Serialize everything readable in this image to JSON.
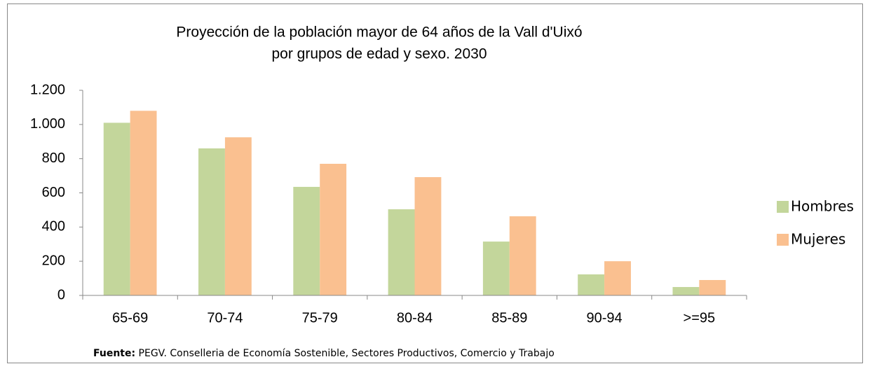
{
  "chart_data": {
    "type": "bar",
    "title": [
      "Proyección de la población mayor de 64 años de la Vall d'Uixó",
      "por grupos de edad y sexo. 2030"
    ],
    "categories": [
      "65-69",
      "70-74",
      "75-79",
      "80-84",
      "85-89",
      "90-94",
      ">=95"
    ],
    "series": [
      {
        "name": "Hombres",
        "color": "#c3d69b",
        "values": [
          1010,
          860,
          635,
          504,
          315,
          123,
          49
        ]
      },
      {
        "name": "Mujeres",
        "color": "#fac090",
        "values": [
          1080,
          925,
          770,
          692,
          463,
          200,
          90
        ]
      }
    ],
    "ylim": [
      0,
      1200
    ],
    "yticks": [
      0,
      200,
      400,
      600,
      800,
      {
        "value": 1000,
        "label": "1.000"
      },
      {
        "value": 1200,
        "label": "1.200"
      }
    ],
    "grid": false,
    "legend": "right",
    "source_label": "Fuente:",
    "source": "PEGV. Conselleria de Economía Sostenible, Sectores Productivos, Comercio y Trabajo"
  }
}
